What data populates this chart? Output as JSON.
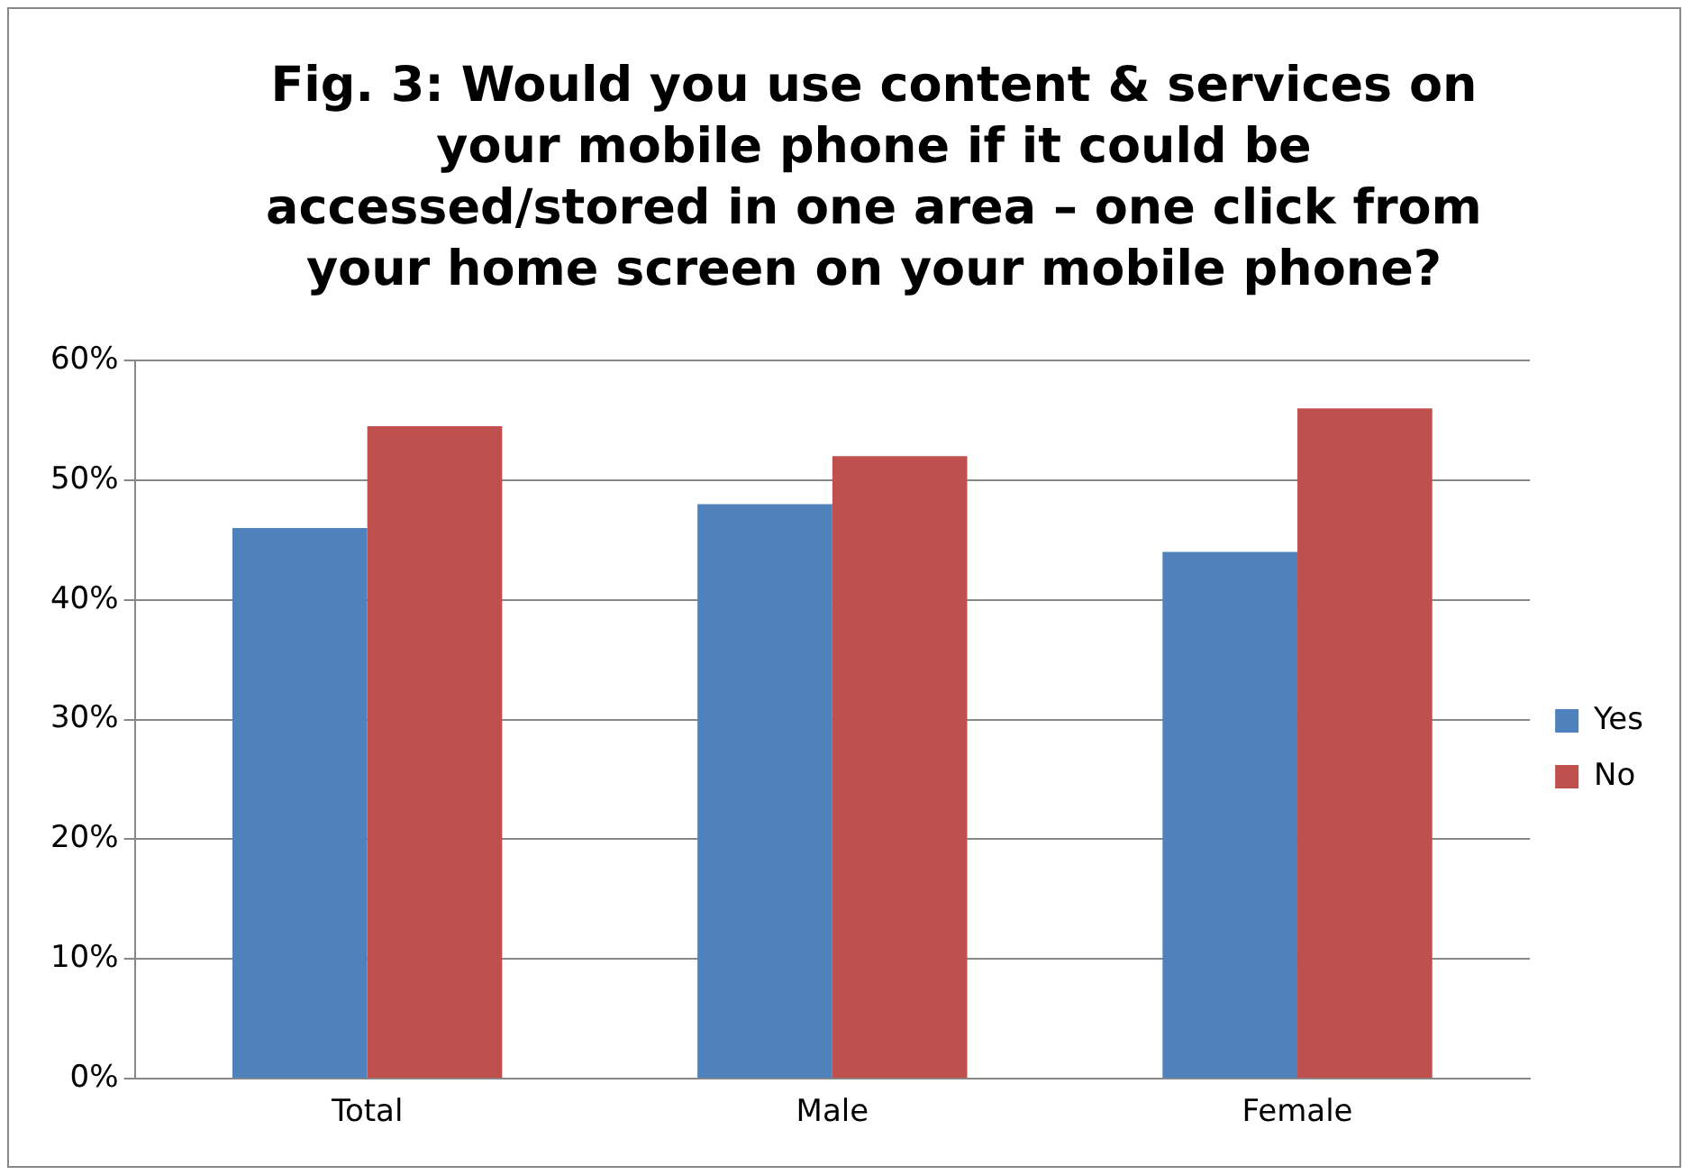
{
  "chart_data": {
    "type": "bar",
    "title": "Fig. 3: Would you use content & services on your mobile phone if it could be accessed/stored in one area – one click from your home screen on your mobile phone?",
    "categories": [
      "Total",
      "Male",
      "Female"
    ],
    "series": [
      {
        "name": "Yes",
        "color": "#4f81bd",
        "values": [
          46,
          48,
          44
        ]
      },
      {
        "name": "No",
        "color": "#c0504d",
        "values": [
          54.5,
          52,
          56
        ]
      }
    ],
    "ylim": [
      0,
      60
    ],
    "yticks": [
      {
        "value": 0,
        "label": "0%"
      },
      {
        "value": 10,
        "label": "10%"
      },
      {
        "value": 20,
        "label": "20%"
      },
      {
        "value": 30,
        "label": "30%"
      },
      {
        "value": 40,
        "label": "40%"
      },
      {
        "value": 50,
        "label": "50%"
      },
      {
        "value": 60,
        "label": "60%"
      }
    ],
    "grid": "y",
    "legend": "right"
  }
}
